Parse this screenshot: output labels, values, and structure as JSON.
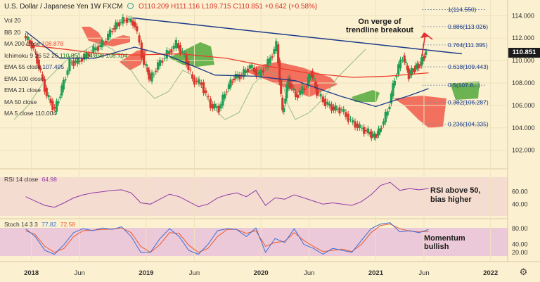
{
  "header": {
    "symbol": "U.S. Dollar / Japanese Yen  1W  FXCM",
    "ohlc": "O110.209 H111.116 L109.715 C110.851 +0.642 (+0.58%)"
  },
  "indicators": [
    {
      "label": "Vol 20",
      "value": ""
    },
    {
      "label": "BB 20",
      "value": ""
    },
    {
      "label": "MA 200 close",
      "value": "108.878",
      "color": "#ef3b2c"
    },
    {
      "label": "Ichimoku 9 26 52 26",
      "value": "110.851  104.898  108.704",
      "color": "#1f7a1f"
    },
    {
      "label": "EMA 55 close",
      "value": "107.495",
      "color": "#1a3a8a"
    },
    {
      "label": "EMA 100 close",
      "value": ""
    },
    {
      "label": "EMA 21 close",
      "value": ""
    },
    {
      "label": "MA 50 close",
      "value": ""
    },
    {
      "label": "MA 5 close",
      "value": "110.004"
    }
  ],
  "annotations": {
    "main": "On verge of\ntrendline breakout",
    "rsi": "RSI above 50,\nbias higher",
    "stoch": "Momentum\nbullish"
  },
  "panes": {
    "rsi_label": "RSI 14 close",
    "rsi_value": "64.98",
    "stoch_label": "Stoch 14 3 3",
    "stoch_k": "77.82",
    "stoch_d": "72.58"
  },
  "price_tag": "110.851",
  "colors": {
    "up": "#1f9e54",
    "down": "#d9362c",
    "ma200": "#ef3b2c",
    "ema55": "#1a3a8a",
    "trend": "#1a3a8a",
    "rsi": "#8e3ba6",
    "stoch_k": "#3a6fd9",
    "stoch_d": "#ef5a2c",
    "cloud_bull": "#52a83b",
    "cloud_bear": "#ef5a4a"
  },
  "chart_data": {
    "type": "candlestick",
    "title": "U.S. Dollar / Japanese Yen  1W  FXCM",
    "x_ticks": [
      "2018",
      "Jun",
      "2019",
      "Jun",
      "2020",
      "Jun",
      "2021",
      "Jun",
      "2022"
    ],
    "y_ticks": [
      102.0,
      104.0,
      106.0,
      108.0,
      110.0,
      112.0,
      114.0
    ],
    "ylim": [
      100.6,
      115.4
    ],
    "fib_levels": [
      {
        "label": "1(114.550)",
        "value": 114.55
      },
      {
        "label": "0.886(113.026)",
        "value": 113.026
      },
      {
        "label": "0.764(111.395)",
        "value": 111.395
      },
      {
        "label": "0.618(109.443)",
        "value": 109.443
      },
      {
        "label": "0.5(107.8...)",
        "value": 107.8
      },
      {
        "label": "0.382(106.287)",
        "value": 106.287
      },
      {
        "label": "0.236(104.335)",
        "value": 104.335
      }
    ],
    "close_path": [
      {
        "x": 2017.95,
        "y": 112.2
      },
      {
        "x": 2018.02,
        "y": 111.4
      },
      {
        "x": 2018.08,
        "y": 109.5
      },
      {
        "x": 2018.15,
        "y": 106.9
      },
      {
        "x": 2018.22,
        "y": 105.6
      },
      {
        "x": 2018.28,
        "y": 107.5
      },
      {
        "x": 2018.35,
        "y": 109.8
      },
      {
        "x": 2018.42,
        "y": 109.9
      },
      {
        "x": 2018.5,
        "y": 110.5
      },
      {
        "x": 2018.58,
        "y": 111.1
      },
      {
        "x": 2018.65,
        "y": 111.6
      },
      {
        "x": 2018.72,
        "y": 112.8
      },
      {
        "x": 2018.78,
        "y": 113.4
      },
      {
        "x": 2018.85,
        "y": 113.7
      },
      {
        "x": 2018.92,
        "y": 113.2
      },
      {
        "x": 2019.0,
        "y": 109.7
      },
      {
        "x": 2019.05,
        "y": 108.3
      },
      {
        "x": 2019.12,
        "y": 109.6
      },
      {
        "x": 2019.2,
        "y": 110.6
      },
      {
        "x": 2019.28,
        "y": 111.5
      },
      {
        "x": 2019.35,
        "y": 110.4
      },
      {
        "x": 2019.42,
        "y": 108.3
      },
      {
        "x": 2019.5,
        "y": 107.9
      },
      {
        "x": 2019.58,
        "y": 106.0
      },
      {
        "x": 2019.65,
        "y": 105.7
      },
      {
        "x": 2019.72,
        "y": 107.5
      },
      {
        "x": 2019.78,
        "y": 108.5
      },
      {
        "x": 2019.85,
        "y": 108.7
      },
      {
        "x": 2019.92,
        "y": 109.5
      },
      {
        "x": 2020.0,
        "y": 108.7
      },
      {
        "x": 2020.08,
        "y": 109.8
      },
      {
        "x": 2020.15,
        "y": 111.4
      },
      {
        "x": 2020.2,
        "y": 105.3
      },
      {
        "x": 2020.25,
        "y": 108.3
      },
      {
        "x": 2020.32,
        "y": 106.8
      },
      {
        "x": 2020.4,
        "y": 107.6
      },
      {
        "x": 2020.45,
        "y": 109.0
      },
      {
        "x": 2020.5,
        "y": 107.2
      },
      {
        "x": 2020.58,
        "y": 106.2
      },
      {
        "x": 2020.65,
        "y": 105.7
      },
      {
        "x": 2020.72,
        "y": 105.6
      },
      {
        "x": 2020.8,
        "y": 104.6
      },
      {
        "x": 2020.88,
        "y": 104.0
      },
      {
        "x": 2020.95,
        "y": 103.6
      },
      {
        "x": 2021.0,
        "y": 103.2
      },
      {
        "x": 2021.05,
        "y": 103.8
      },
      {
        "x": 2021.12,
        "y": 105.5
      },
      {
        "x": 2021.18,
        "y": 108.4
      },
      {
        "x": 2021.25,
        "y": 110.4
      },
      {
        "x": 2021.3,
        "y": 108.7
      },
      {
        "x": 2021.35,
        "y": 109.3
      },
      {
        "x": 2021.4,
        "y": 109.7
      },
      {
        "x": 2021.45,
        "y": 110.8
      }
    ],
    "ma200": [
      {
        "x": 2017.95,
        "y": 111.4
      },
      {
        "x": 2018.3,
        "y": 111.0
      },
      {
        "x": 2018.6,
        "y": 110.6
      },
      {
        "x": 2018.9,
        "y": 110.5
      },
      {
        "x": 2019.3,
        "y": 110.6
      },
      {
        "x": 2019.7,
        "y": 110.2
      },
      {
        "x": 2020.0,
        "y": 109.6
      },
      {
        "x": 2020.4,
        "y": 108.9
      },
      {
        "x": 2020.8,
        "y": 108.5
      },
      {
        "x": 2021.1,
        "y": 108.6
      },
      {
        "x": 2021.46,
        "y": 108.9
      }
    ],
    "ema55": [
      {
        "x": 2017.95,
        "y": 112.6
      },
      {
        "x": 2018.25,
        "y": 110.2
      },
      {
        "x": 2018.55,
        "y": 110.2
      },
      {
        "x": 2018.9,
        "y": 111.2
      },
      {
        "x": 2019.2,
        "y": 110.4
      },
      {
        "x": 2019.6,
        "y": 108.7
      },
      {
        "x": 2019.95,
        "y": 108.6
      },
      {
        "x": 2020.3,
        "y": 108.2
      },
      {
        "x": 2020.7,
        "y": 106.8
      },
      {
        "x": 2021.0,
        "y": 105.9
      },
      {
        "x": 2021.3,
        "y": 106.9
      },
      {
        "x": 2021.46,
        "y": 107.5
      }
    ],
    "trendline": [
      {
        "x": 2018.88,
        "y": 113.8
      },
      {
        "x": 2021.75,
        "y": 110.6
      }
    ],
    "rsi": {
      "ylim": [
        20,
        90
      ],
      "ticks": [
        40.0,
        60.0
      ],
      "values": [
        52,
        45,
        38,
        35,
        42,
        50,
        55,
        58,
        60,
        62,
        63,
        58,
        42,
        40,
        48,
        56,
        52,
        44,
        36,
        40,
        50,
        55,
        58,
        52,
        62,
        38,
        50,
        48,
        55,
        50,
        45,
        40,
        42,
        40,
        38,
        44,
        55,
        70,
        75,
        62,
        65,
        63,
        65
      ]
    },
    "stoch": {
      "ylim": [
        0,
        100
      ],
      "ticks": [
        20.0,
        40.0,
        60.0,
        80.0
      ],
      "k": [
        80,
        60,
        25,
        15,
        40,
        70,
        80,
        75,
        82,
        78,
        85,
        60,
        20,
        20,
        55,
        80,
        60,
        25,
        15,
        40,
        75,
        80,
        78,
        60,
        82,
        20,
        55,
        45,
        80,
        40,
        30,
        15,
        30,
        25,
        20,
        50,
        80,
        92,
        95,
        72,
        75,
        70,
        78
      ],
      "d": [
        75,
        65,
        35,
        20,
        30,
        60,
        75,
        76,
        78,
        79,
        82,
        70,
        35,
        20,
        40,
        70,
        68,
        38,
        20,
        30,
        60,
        78,
        78,
        68,
        75,
        35,
        45,
        48,
        70,
        50,
        35,
        22,
        25,
        28,
        22,
        40,
        70,
        88,
        92,
        80,
        74,
        72,
        73
      ]
    }
  }
}
